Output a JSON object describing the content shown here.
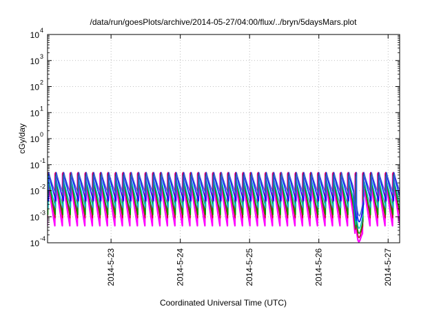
{
  "chart_data": {
    "type": "line",
    "title": "/data/run/goesPlots/archive/2014-05-27/04:00/flux/../bryn/5daysMars.plot",
    "xlabel": "Coordinated Universal Time (UTC)",
    "ylabel": "cGy/day",
    "y_scale": "log",
    "ylim": [
      0.0001,
      10000
    ],
    "xlim": [
      "2014-05-22T02:00",
      "2014-05-27T04:00"
    ],
    "grid": true,
    "x_ticks": [
      "2014-5-23",
      "2014-5-24",
      "2014-5-25",
      "2014-5-26",
      "2014-5-27"
    ],
    "y_ticks": [
      {
        "base": "10",
        "exp": "-4"
      },
      {
        "base": "10",
        "exp": "-3"
      },
      {
        "base": "10",
        "exp": "-2"
      },
      {
        "base": "10",
        "exp": "-1"
      },
      {
        "base": "10",
        "exp": "0"
      },
      {
        "base": "10",
        "exp": "1"
      },
      {
        "base": "10",
        "exp": "2"
      },
      {
        "base": "10",
        "exp": "3"
      },
      {
        "base": "10",
        "exp": "4"
      }
    ],
    "cycle_hours": 2.6,
    "series": [
      {
        "color": "#ff00ff",
        "peak": 0.045,
        "trough": 0.00045
      },
      {
        "color": "#c00020",
        "peak": 0.05,
        "trough": 0.0009
      },
      {
        "color": "#00a000",
        "peak": 0.04,
        "trough": 0.0012
      },
      {
        "color": "#00c0c0",
        "peak": 0.035,
        "trough": 0.0022
      },
      {
        "color": "#0000ff",
        "peak": 0.05,
        "trough": 0.004
      },
      {
        "color": "#4060d0",
        "peak": 0.048,
        "trough": 0.0065
      }
    ],
    "dip": {
      "start": "2014-05-26T12:00",
      "end": "2014-05-26T15:40",
      "min": 9e-05
    }
  }
}
